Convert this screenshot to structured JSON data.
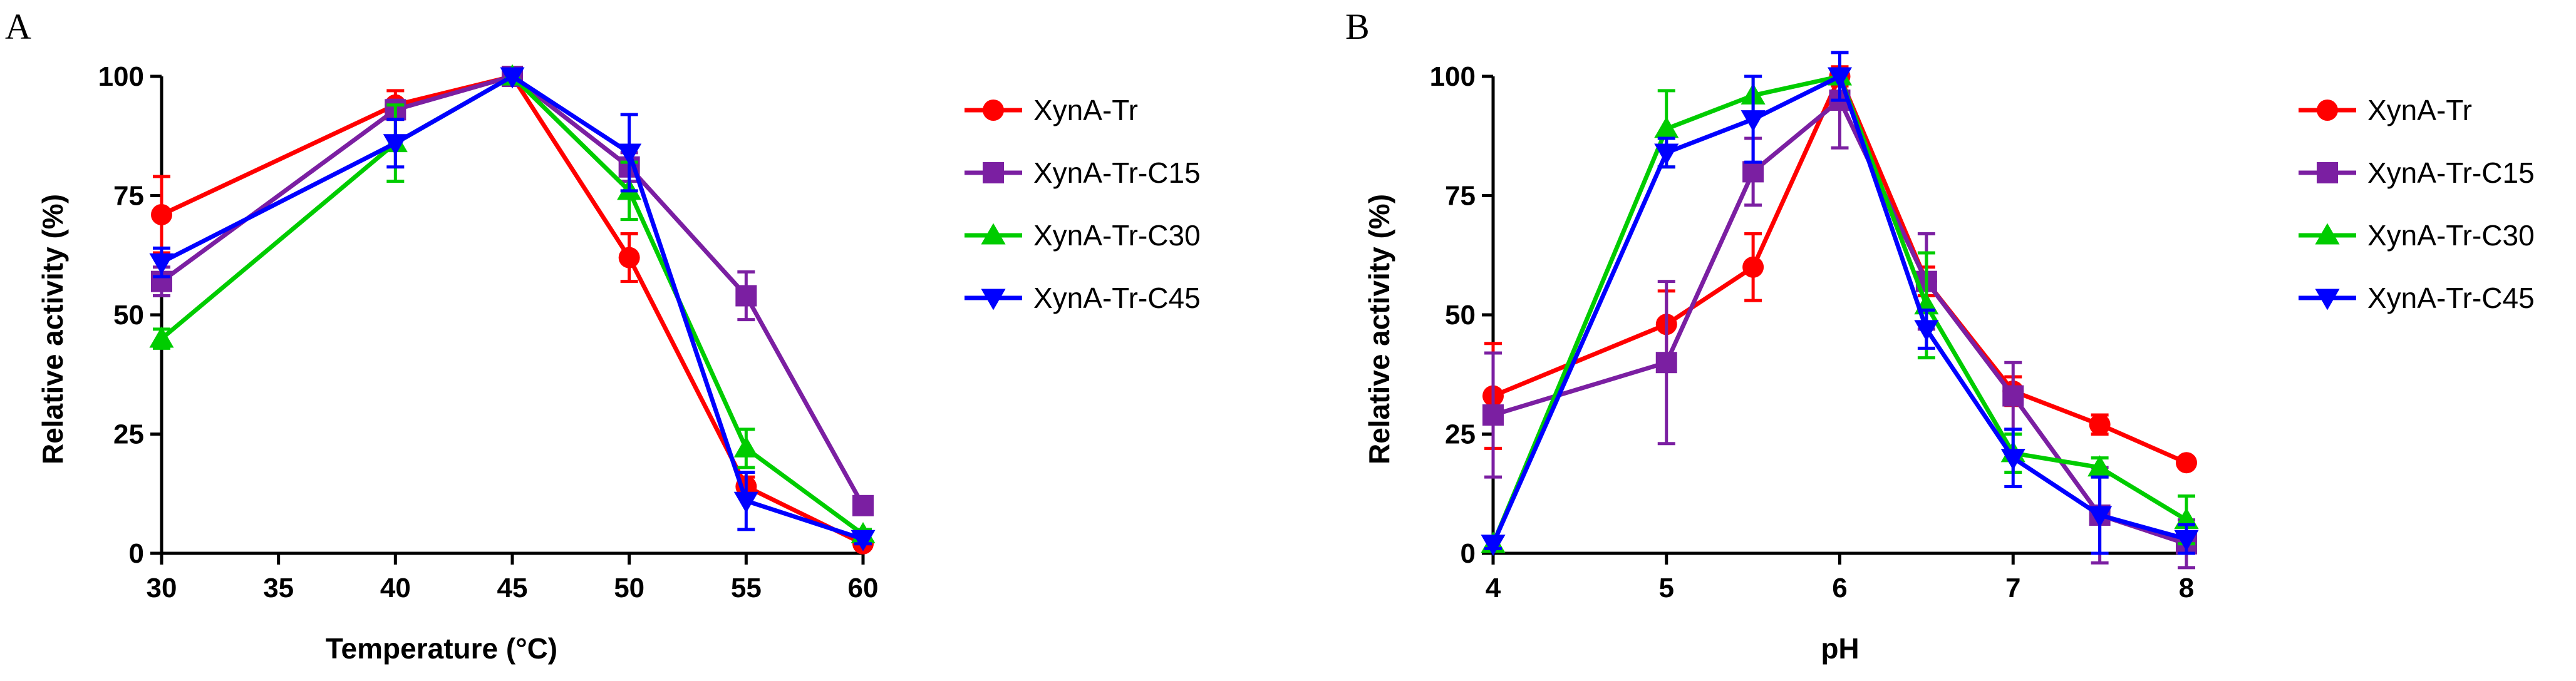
{
  "colors": {
    "XynA-Tr": "#ff0000",
    "XynA-Tr-C15": "#7b1fa2",
    "XynA-Tr-C30": "#00cc00",
    "XynA-Tr-C45": "#0000ff"
  },
  "chart_data": [
    {
      "type": "line",
      "panel_label": "A",
      "title": "",
      "xlabel": "Temperature (°C)",
      "ylabel": "Relative activity (%)",
      "xlim": [
        30,
        60
      ],
      "ylim": [
        0,
        100
      ],
      "xticks": [
        30,
        35,
        40,
        45,
        50,
        55,
        60
      ],
      "yticks": [
        0,
        25,
        50,
        75,
        100
      ],
      "x": [
        30,
        40,
        45,
        50,
        55,
        60
      ],
      "legend": "right",
      "series": [
        {
          "name": "XynA-Tr",
          "marker": "circle",
          "values": [
            71,
            94,
            100,
            62,
            14,
            2
          ],
          "errors": [
            8,
            3,
            0,
            5,
            2,
            1
          ]
        },
        {
          "name": "XynA-Tr-C15",
          "marker": "square",
          "values": [
            57,
            93,
            100,
            81,
            54,
            10
          ],
          "errors": [
            3,
            2,
            0,
            3,
            5,
            1
          ]
        },
        {
          "name": "XynA-Tr-C30",
          "marker": "triangle-up",
          "values": [
            45,
            86,
            100,
            76,
            22,
            4
          ],
          "errors": [
            2,
            8,
            0,
            6,
            4,
            1
          ]
        },
        {
          "name": "XynA-Tr-C45",
          "marker": "triangle-down",
          "values": [
            61,
            86,
            100,
            84,
            11,
            3
          ],
          "errors": [
            3,
            5,
            0,
            8,
            6,
            1
          ]
        }
      ]
    },
    {
      "type": "line",
      "panel_label": "B",
      "title": "",
      "xlabel": "pH",
      "ylabel": "Relative activity (%)",
      "xlim": [
        4,
        8
      ],
      "ylim": [
        0,
        100
      ],
      "xticks": [
        4,
        5,
        6,
        7,
        8
      ],
      "yticks": [
        0,
        25,
        50,
        75,
        100
      ],
      "x": [
        4,
        5,
        5.5,
        6,
        6.5,
        7,
        7.5,
        8
      ],
      "legend": "right",
      "series": [
        {
          "name": "XynA-Tr",
          "marker": "circle",
          "values": [
            33,
            48,
            60,
            100,
            57,
            34,
            27,
            19
          ],
          "errors": [
            11,
            7,
            7,
            2,
            3,
            3,
            2,
            1
          ]
        },
        {
          "name": "XynA-Tr-C15",
          "marker": "square",
          "values": [
            29,
            40,
            80,
            95,
            57,
            33,
            8,
            2
          ],
          "errors": [
            13,
            17,
            7,
            10,
            10,
            7,
            10,
            5
          ]
        },
        {
          "name": "XynA-Tr-C30",
          "marker": "triangle-up",
          "values": [
            2,
            89,
            96,
            100,
            52,
            21,
            18,
            7
          ],
          "errors": [
            1,
            8,
            4,
            1,
            11,
            4,
            2,
            5
          ]
        },
        {
          "name": "XynA-Tr-C45",
          "marker": "triangle-down",
          "values": [
            2,
            84,
            91,
            100,
            47,
            20,
            8,
            3
          ],
          "errors": [
            1,
            3,
            9,
            5,
            4,
            6,
            8,
            3
          ]
        }
      ]
    }
  ]
}
